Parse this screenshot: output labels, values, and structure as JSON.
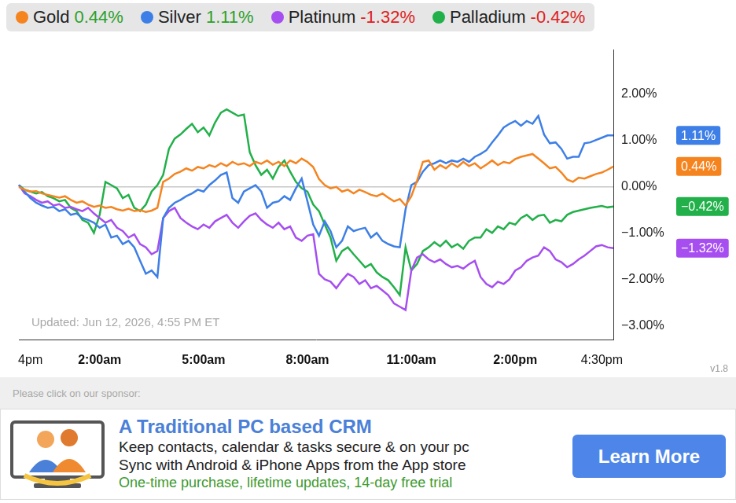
{
  "chart_data": {
    "type": "line",
    "categories": [
      null,
      null,
      "4pm",
      null,
      null,
      null,
      null,
      null,
      null,
      null,
      null,
      null,
      null,
      null,
      "2:00am",
      null,
      null,
      null,
      null,
      null,
      null,
      null,
      null,
      null,
      null,
      null,
      null,
      null,
      null,
      null,
      null,
      null,
      "5:00am",
      null,
      null,
      null,
      null,
      null,
      null,
      null,
      null,
      null,
      null,
      null,
      null,
      null,
      null,
      null,
      null,
      null,
      "8:00am",
      null,
      null,
      null,
      null,
      null,
      null,
      null,
      null,
      null,
      null,
      null,
      null,
      null,
      null,
      null,
      null,
      null,
      "11:00am",
      null,
      null,
      null,
      null,
      null,
      null,
      null,
      null,
      null,
      null,
      null,
      null,
      null,
      null,
      null,
      null,
      null,
      "2:00pm",
      null,
      null,
      null,
      null,
      null,
      null,
      null,
      null,
      null,
      null,
      null,
      null,
      null,
      null,
      "4:30pm",
      null,
      null
    ],
    "series": [
      {
        "name": "Gold",
        "color": "#f5841f",
        "legend_value": "0.44%",
        "end_label": "0.44%",
        "values": [
          0,
          -0.06,
          -0.1,
          -0.09,
          -0.14,
          -0.17,
          -0.2,
          -0.23,
          -0.2,
          -0.28,
          -0.34,
          -0.31,
          -0.38,
          -0.43,
          -0.4,
          -0.45,
          -0.43,
          -0.48,
          -0.51,
          -0.47,
          -0.52,
          -0.5,
          -0.54,
          -0.51,
          -0.45,
          0.11,
          0.18,
          0.28,
          0.33,
          0.4,
          0.35,
          0.43,
          0.4,
          0.47,
          0.43,
          0.51,
          0.45,
          0.54,
          0.48,
          0.51,
          0.45,
          0.54,
          0.5,
          0.57,
          0.48,
          0.54,
          0.45,
          0.57,
          0.51,
          0.61,
          0.54,
          0.43,
          0.17,
          0.04,
          -0.03,
          0,
          -0.1,
          -0.06,
          -0.14,
          -0.06,
          -0.11,
          -0.17,
          -0.2,
          -0.14,
          -0.23,
          -0.31,
          -0.26,
          -0.4,
          -0.2,
          0.14,
          0.54,
          0.57,
          0.37,
          0.47,
          0.4,
          0.51,
          0.43,
          0.54,
          0.45,
          0.51,
          0.4,
          0.48,
          0.57,
          0.47,
          0.54,
          0.51,
          0.6,
          0.65,
          0.68,
          0.71,
          0.61,
          0.51,
          0.4,
          0.43,
          0.31,
          0.16,
          0.11,
          0.2,
          0.18,
          0.23,
          0.28,
          0.31,
          0.37,
          0.44
        ]
      },
      {
        "name": "Silver",
        "color": "#3d7fe6",
        "legend_value": "1.11%",
        "end_label": "1.11%",
        "values": [
          0.04,
          -0.1,
          -0.24,
          -0.34,
          -0.4,
          -0.45,
          -0.43,
          -0.52,
          -0.48,
          -0.6,
          -0.57,
          -0.67,
          -0.71,
          -0.77,
          -0.88,
          -0.81,
          -1.09,
          -1.05,
          -1.23,
          -1.16,
          -1.3,
          -1.59,
          -1.87,
          -1.8,
          -1.94,
          -0.67,
          -0.45,
          -0.34,
          -0.28,
          -0.2,
          -0.14,
          -0.06,
          -0.1,
          0.04,
          0.14,
          0.26,
          0.31,
          -0.24,
          -0.34,
          -0.1,
          -0.03,
          0.04,
          -0.1,
          -0.45,
          -0.34,
          -0.31,
          -0.2,
          -0.28,
          -0.03,
          0.18,
          -0.31,
          -0.81,
          -1.05,
          -0.74,
          -0.95,
          -1.3,
          -1.16,
          -0.85,
          -0.95,
          -0.91,
          -0.88,
          -1.09,
          -0.99,
          -1.16,
          -1.23,
          -1.28,
          -1.3,
          -0.48,
          0.04,
          0.11,
          0.33,
          0.47,
          0.51,
          0.57,
          0.51,
          0.57,
          0.54,
          0.61,
          0.54,
          0.65,
          0.71,
          0.79,
          0.96,
          1.11,
          1.28,
          1.36,
          1.42,
          1.32,
          1.42,
          1.36,
          1.53,
          1.13,
          0.94,
          0.96,
          0.82,
          0.61,
          0.65,
          0.65,
          0.94,
          0.96,
          1.01,
          1.06,
          1.11,
          1.11
        ]
      },
      {
        "name": "Platinum",
        "color": "#a64ef0",
        "legend_value": "-1.32%",
        "end_label": "−1.32%",
        "values": [
          0.04,
          -0.14,
          -0.2,
          -0.28,
          -0.34,
          -0.31,
          -0.4,
          -0.37,
          -0.45,
          -0.43,
          -0.48,
          -0.52,
          -0.45,
          -0.57,
          -0.67,
          -0.77,
          -0.71,
          -0.88,
          -0.95,
          -1.09,
          -1.02,
          -1.23,
          -1.3,
          -1.45,
          -1.38,
          -0.67,
          -0.52,
          -0.45,
          -0.67,
          -0.77,
          -0.85,
          -0.91,
          -0.81,
          -0.88,
          -0.74,
          -0.67,
          -0.6,
          -0.77,
          -0.88,
          -0.74,
          -0.62,
          -0.57,
          -0.71,
          -0.81,
          -0.88,
          -0.77,
          -0.91,
          -0.85,
          -1.09,
          -1.16,
          -1.05,
          -1.02,
          -1.87,
          -1.99,
          -2.04,
          -2.18,
          -2.01,
          -1.87,
          -1.94,
          -2.09,
          -2.01,
          -2.18,
          -2.13,
          -2.23,
          -2.33,
          -2.51,
          -2.58,
          -2.65,
          -1.8,
          -1.52,
          -1.45,
          -1.56,
          -1.62,
          -1.56,
          -1.66,
          -1.73,
          -1.7,
          -1.76,
          -1.66,
          -1.59,
          -1.94,
          -2.09,
          -2.16,
          -2.04,
          -2.09,
          -1.99,
          -1.8,
          -1.73,
          -1.59,
          -1.52,
          -1.48,
          -1.3,
          -1.38,
          -1.56,
          -1.62,
          -1.73,
          -1.66,
          -1.56,
          -1.48,
          -1.38,
          -1.28,
          -1.25,
          -1.3,
          -1.32
        ]
      },
      {
        "name": "Palladium",
        "color": "#22b04a",
        "legend_value": "-0.42%",
        "end_label": "−0.42%",
        "values": [
          0.04,
          -0.06,
          -0.1,
          -0.14,
          -0.11,
          -0.2,
          -0.24,
          -0.31,
          -0.28,
          -0.45,
          -0.52,
          -0.71,
          -0.77,
          -0.99,
          -0.6,
          0.11,
          0.04,
          -0.03,
          -0.24,
          -0.17,
          -0.45,
          -0.52,
          -0.38,
          -0.1,
          0.04,
          0.26,
          0.82,
          1.04,
          1.13,
          1.25,
          1.36,
          1.18,
          1.28,
          1.11,
          1.39,
          1.6,
          1.67,
          1.6,
          1.53,
          1.56,
          0.75,
          0.47,
          0.26,
          0.37,
          0.18,
          0.43,
          0.57,
          0.33,
          0.11,
          -0.03,
          -0.1,
          -0.38,
          -0.52,
          -0.81,
          -1.09,
          -1.59,
          -1.38,
          -1.3,
          -1.45,
          -1.59,
          -1.73,
          -1.66,
          -1.84,
          -1.94,
          -2.01,
          -2.16,
          -2.33,
          -1.3,
          -1.8,
          -1.66,
          -1.38,
          -1.3,
          -1.19,
          -1.28,
          -1.16,
          -1.3,
          -1.23,
          -1.33,
          -1.16,
          -1.09,
          -1.09,
          -0.91,
          -0.99,
          -0.85,
          -0.91,
          -0.77,
          -0.81,
          -0.67,
          -0.6,
          -0.71,
          -0.62,
          -0.6,
          -0.77,
          -0.71,
          -0.74,
          -0.6,
          -0.54,
          -0.51,
          -0.48,
          -0.45,
          -0.43,
          -0.41,
          -0.44,
          -0.42
        ]
      }
    ],
    "ylim": [
      -3.3,
      2.95
    ],
    "yticks": [
      {
        "value": -3,
        "label": "−3.00%"
      },
      {
        "value": -2,
        "label": "−2.00%"
      },
      {
        "value": -1,
        "label": "−1.00%"
      },
      {
        "value": 0,
        "label": "0.00%"
      },
      {
        "value": 1,
        "label": "1.00%"
      },
      {
        "value": 2,
        "label": "2.00%"
      }
    ],
    "grid": false,
    "legend": "top",
    "annotations": [
      "Updated: Jun 12, 2026, 4:55 PM ET"
    ]
  },
  "version": "v1.8",
  "sponsor": {
    "prompt": "Please click on our sponsor:",
    "title": "A Traditional PC based CRM",
    "lines": [
      "Keep contacts, calendar & tasks secure & on your pc",
      "Sync with Android & iPhone Apps from the App store"
    ],
    "tagline": "One-time purchase, lifetime updates, 14-day free trial",
    "button": "Learn More"
  }
}
